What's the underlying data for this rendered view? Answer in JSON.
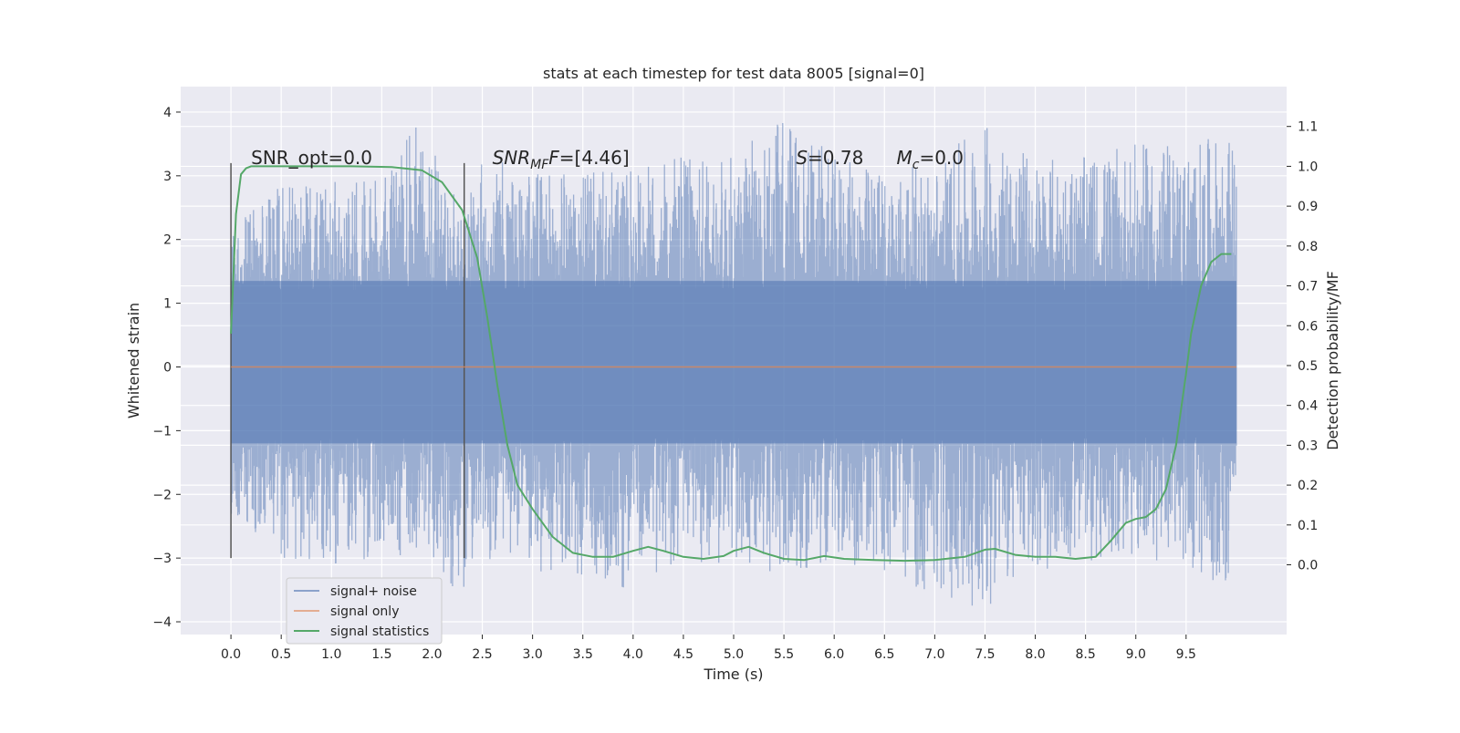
{
  "chart_data": {
    "type": "line",
    "title": "stats at each timestep for test data 8005 [signal=0]",
    "xlabel": "Time (s)",
    "ylabel": "Whitened strain",
    "ylabel_right": "Detection probability/MF",
    "xlim": [
      -0.5,
      10.5
    ],
    "ylim": [
      -4.2,
      4.4
    ],
    "ylim_right": [
      -0.175,
      1.2
    ],
    "x_ticks": [
      "0.0",
      "0.5",
      "1.0",
      "1.5",
      "2.0",
      "2.5",
      "3.0",
      "3.5",
      "4.0",
      "4.5",
      "5.0",
      "5.5",
      "6.0",
      "6.5",
      "7.0",
      "7.5",
      "8.0",
      "8.5",
      "9.0",
      "9.5"
    ],
    "y_ticks": [
      "4",
      "3",
      "2",
      "1",
      "0",
      "−1",
      "−2",
      "−3",
      "−4"
    ],
    "y_ticks_right": [
      "1.1",
      "1.0",
      "0.9",
      "0.8",
      "0.7",
      "0.6",
      "0.5",
      "0.4",
      "0.3",
      "0.2",
      "0.1",
      "0.0"
    ],
    "grid": true,
    "legend_position": "lower-left",
    "annotations": {
      "snr_opt": "SNR_opt=0.0",
      "snr_mf_prefix": "SNR",
      "snr_mf_sub": "MF",
      "snr_mf_value": "=[4.46]",
      "s_symbol": "S",
      "s_value": "=0.78",
      "mc_symbol": "M",
      "mc_sub": "c",
      "mc_value": "=0.0"
    },
    "vertical_markers": [
      0.0,
      2.32
    ],
    "series": [
      {
        "name": "signal+ noise",
        "axis": "left",
        "color": "#4c72b0",
        "x_range": [
          0.0,
          10.0
        ],
        "envelope_points": [
          [
            0.0,
            2.15,
            -2.3
          ],
          [
            0.5,
            2.95,
            -3.0
          ],
          [
            1.0,
            2.9,
            -3.1
          ],
          [
            1.5,
            3.0,
            -3.0
          ],
          [
            1.95,
            4.05,
            -2.9
          ],
          [
            2.3,
            2.3,
            -3.7
          ],
          [
            2.5,
            3.3,
            -3.0
          ],
          [
            3.0,
            3.1,
            -3.2
          ],
          [
            3.5,
            3.05,
            -3.3
          ],
          [
            4.0,
            3.1,
            -3.5
          ],
          [
            4.5,
            3.3,
            -3.0
          ],
          [
            5.0,
            3.3,
            -3.2
          ],
          [
            5.5,
            4.05,
            -3.3
          ],
          [
            6.0,
            3.3,
            -3.0
          ],
          [
            6.5,
            3.1,
            -3.3
          ],
          [
            7.0,
            3.2,
            -3.6
          ],
          [
            7.5,
            3.85,
            -3.8
          ],
          [
            8.0,
            3.3,
            -3.2
          ],
          [
            8.5,
            3.3,
            -3.1
          ],
          [
            9.0,
            3.5,
            -3.0
          ],
          [
            9.5,
            3.5,
            -3.2
          ],
          [
            9.9,
            3.65,
            -3.45
          ]
        ]
      },
      {
        "name": "signal only",
        "axis": "left",
        "color": "#dd8452",
        "x": [
          0.0,
          10.0
        ],
        "y": [
          0.0,
          0.0
        ]
      },
      {
        "name": "signal statistics",
        "axis": "right",
        "color": "#55a868",
        "x": [
          0.0,
          0.05,
          0.1,
          0.15,
          0.2,
          0.4,
          0.8,
          1.2,
          1.6,
          1.9,
          2.1,
          2.3,
          2.45,
          2.55,
          2.65,
          2.75,
          2.85,
          3.0,
          3.2,
          3.4,
          3.6,
          3.8,
          4.0,
          4.15,
          4.3,
          4.5,
          4.7,
          4.9,
          5.0,
          5.15,
          5.3,
          5.5,
          5.7,
          5.9,
          6.1,
          6.4,
          6.7,
          7.0,
          7.3,
          7.5,
          7.6,
          7.8,
          8.0,
          8.2,
          8.4,
          8.6,
          8.75,
          8.9,
          9.0,
          9.1,
          9.2,
          9.3,
          9.4,
          9.5,
          9.55,
          9.65,
          9.75,
          9.85,
          9.95
        ],
        "y": [
          0.58,
          0.88,
          0.98,
          0.995,
          1.0,
          1.0,
          1.0,
          1.0,
          0.998,
          0.99,
          0.96,
          0.89,
          0.77,
          0.62,
          0.45,
          0.3,
          0.2,
          0.14,
          0.07,
          0.03,
          0.02,
          0.02,
          0.035,
          0.045,
          0.035,
          0.02,
          0.015,
          0.022,
          0.035,
          0.045,
          0.03,
          0.015,
          0.012,
          0.022,
          0.015,
          0.012,
          0.01,
          0.012,
          0.02,
          0.038,
          0.04,
          0.025,
          0.02,
          0.02,
          0.015,
          0.02,
          0.06,
          0.105,
          0.115,
          0.12,
          0.14,
          0.19,
          0.3,
          0.48,
          0.58,
          0.7,
          0.76,
          0.78,
          0.78
        ]
      }
    ]
  }
}
